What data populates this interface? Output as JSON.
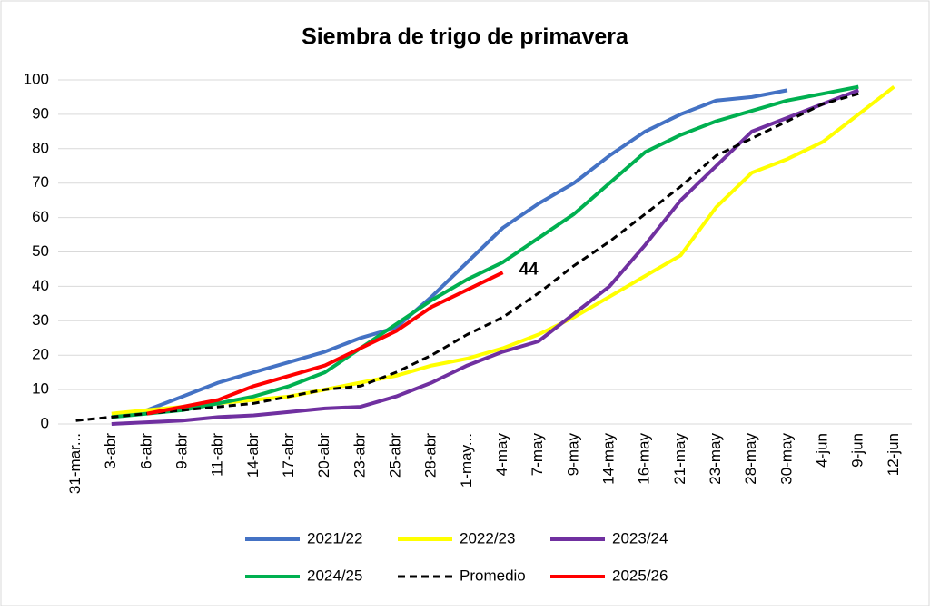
{
  "chart_data": {
    "type": "line",
    "title": "Siembra de trigo de primavera",
    "categories": [
      "31-mar...",
      "3-abr",
      "6-abr",
      "9-abr",
      "11-abr",
      "14-abr",
      "17-abr",
      "20-abr",
      "23-abr",
      "25-abr",
      "28-abr",
      "1-may...",
      "4-may",
      "7-may",
      "9-may",
      "14-may",
      "16-may",
      "21-may",
      "23-may",
      "28-may",
      "30-may",
      "4-jun",
      "9-jun",
      "12-jun"
    ],
    "series": [
      {
        "name": "2021/22",
        "color": "#4472c4",
        "values": [
          null,
          null,
          4,
          8,
          12,
          15,
          18,
          21,
          25,
          28,
          37,
          47,
          57,
          64,
          70,
          78,
          85,
          90,
          94,
          95,
          97,
          null,
          null,
          null
        ]
      },
      {
        "name": "2022/23",
        "color": "#ffff00",
        "values": [
          null,
          3,
          4,
          5,
          6,
          7,
          8,
          10,
          12,
          14,
          17,
          19,
          22,
          26,
          31,
          37,
          43,
          49,
          63,
          73,
          77,
          82,
          90,
          98
        ]
      },
      {
        "name": "2023/24",
        "color": "#7030a0",
        "values": [
          null,
          0,
          0.5,
          1,
          2,
          2.5,
          3.5,
          4.5,
          5,
          8,
          12,
          17,
          21,
          24,
          32,
          40,
          52,
          65,
          75,
          85,
          89,
          93,
          97,
          null
        ]
      },
      {
        "name": "2024/25",
        "color": "#00b050",
        "values": [
          null,
          2,
          3,
          4,
          6,
          8,
          11,
          15,
          22,
          29,
          36,
          42,
          47,
          54,
          61,
          70,
          79,
          84,
          88,
          91,
          94,
          96,
          98,
          null
        ]
      },
      {
        "name": "Promedio",
        "color": "#000000",
        "dashed": true,
        "values": [
          1,
          2,
          3,
          4,
          5,
          6,
          8,
          10,
          11,
          15,
          20,
          26,
          31,
          38,
          46,
          53,
          61,
          69,
          78,
          83,
          88,
          93,
          96,
          null
        ]
      },
      {
        "name": "2025/26",
        "color": "#ff0000",
        "values": [
          null,
          null,
          3,
          5,
          7,
          11,
          14,
          17,
          22,
          27,
          34,
          39,
          44,
          null,
          null,
          null,
          null,
          null,
          null,
          null,
          null,
          null,
          null,
          null
        ]
      }
    ],
    "labeled_point": "chart_data.series.5.values.12",
    "ylim": [
      0,
      100
    ],
    "yticks": [
      0,
      10,
      20,
      30,
      40,
      50,
      60,
      70,
      80,
      90,
      100
    ],
    "grid": true,
    "legend_columns": 3
  }
}
